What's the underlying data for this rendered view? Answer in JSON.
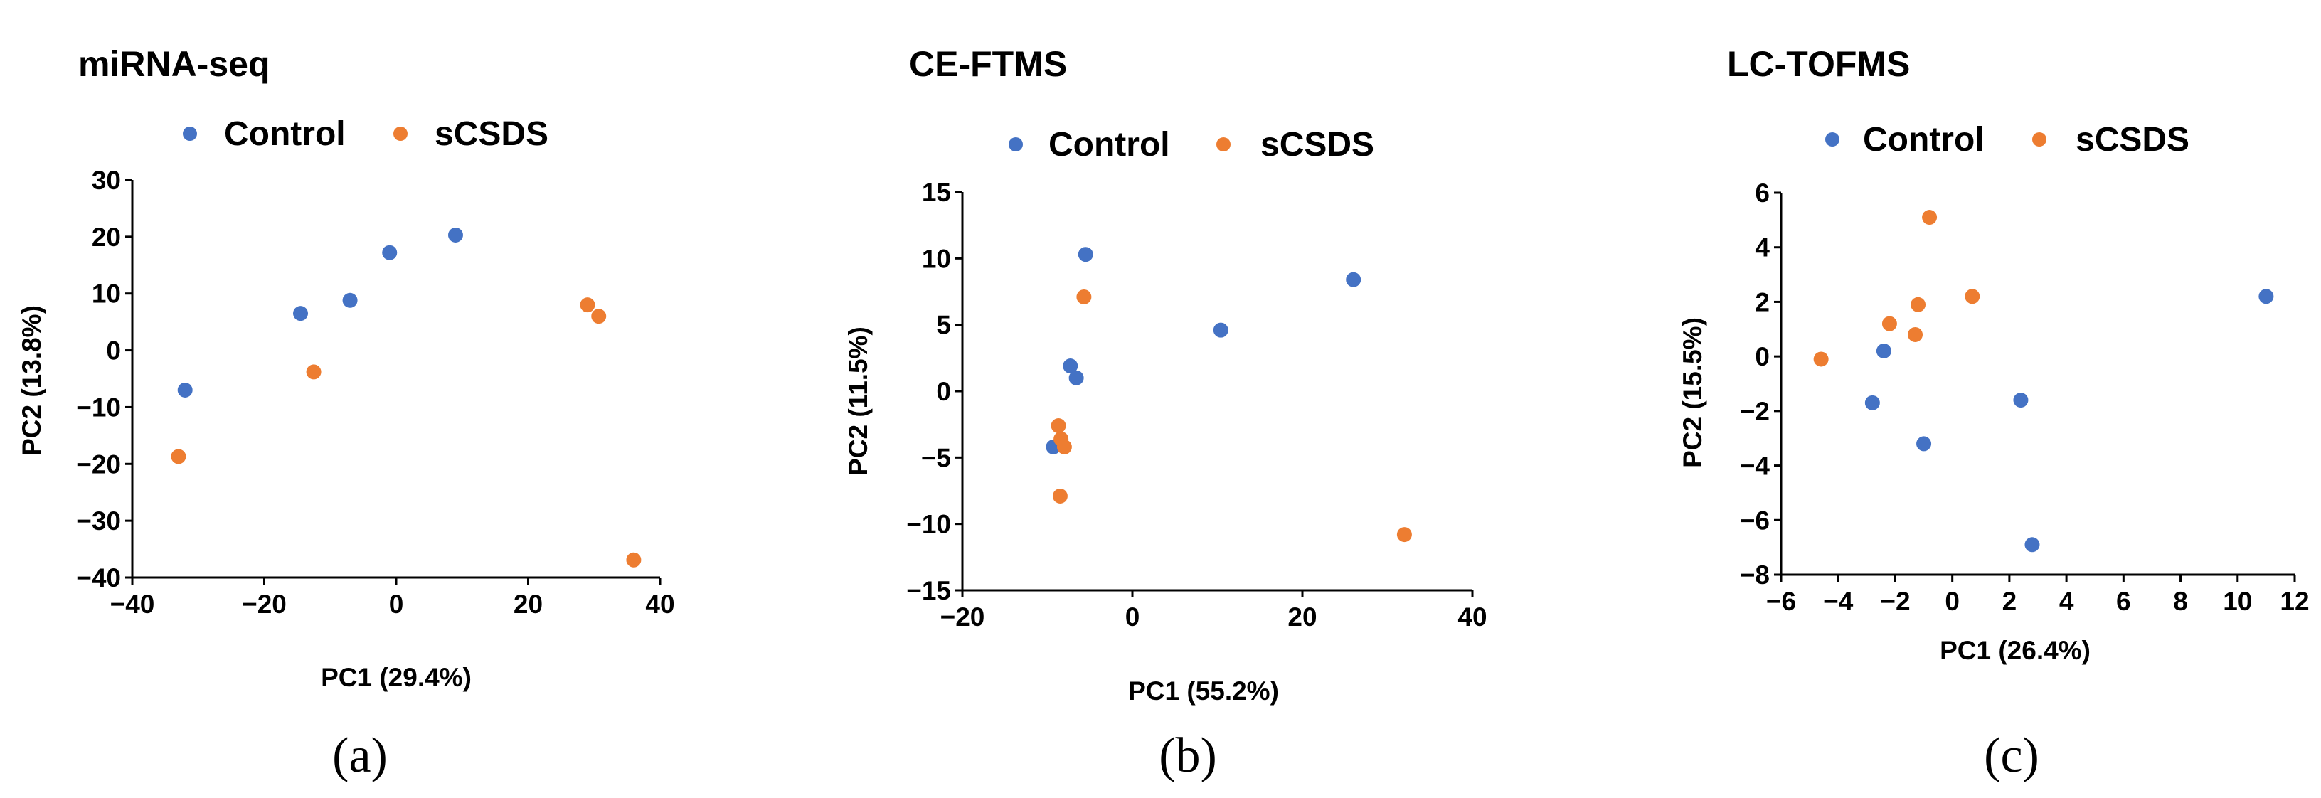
{
  "colors": {
    "control": "#4472C4",
    "scsds": "#ED7D31",
    "axis": "#000000"
  },
  "chart_data": [
    {
      "type": "scatter",
      "panel": "(a)",
      "title": "miRNA-seq",
      "xlabel": "PC1 (29.4%)",
      "ylabel": "PC2 (13.8%)",
      "xlim": [
        -40,
        40
      ],
      "ylim": [
        -40,
        30
      ],
      "xticks": [
        -40,
        -20,
        0,
        20,
        40
      ],
      "yticks": [
        -40,
        -30,
        -20,
        -10,
        0,
        10,
        20,
        30
      ],
      "xtick_labels": [
        "−40",
        "−20",
        "0",
        "20",
        "40"
      ],
      "ytick_labels": [
        "−40",
        "−30",
        "−20",
        "−10",
        "0",
        "10",
        "20",
        "30"
      ],
      "legend": [
        "Control",
        "sCSDS"
      ],
      "series": [
        {
          "name": "Control",
          "points": [
            [
              -32,
              -7
            ],
            [
              -14.5,
              6.5
            ],
            [
              -7,
              8.8
            ],
            [
              -1,
              17.2
            ],
            [
              9,
              20.3
            ]
          ]
        },
        {
          "name": "sCSDS",
          "points": [
            [
              -33,
              -18.7
            ],
            [
              -12.5,
              -3.8
            ],
            [
              29,
              8
            ],
            [
              30.7,
              6
            ],
            [
              36,
              -36.9
            ]
          ]
        }
      ]
    },
    {
      "type": "scatter",
      "panel": "(b)",
      "title": "CE-FTMS",
      "xlabel": "PC1 (55.2%)",
      "ylabel": "PC2 (11.5%)",
      "xlim": [
        -20,
        40
      ],
      "ylim": [
        -15,
        15
      ],
      "xticks": [
        -20,
        0,
        20,
        40
      ],
      "yticks": [
        -15,
        -10,
        -5,
        0,
        5,
        10,
        15
      ],
      "xtick_labels": [
        "−20",
        "0",
        "20",
        "40"
      ],
      "ytick_labels": [
        "−15",
        "−10",
        "−5",
        "0",
        "5",
        "10",
        "15"
      ],
      "legend": [
        "Control",
        "sCSDS"
      ],
      "series": [
        {
          "name": "Control",
          "points": [
            [
              -5.5,
              10.3
            ],
            [
              -7.3,
              1.9
            ],
            [
              -6.6,
              1
            ],
            [
              -9.3,
              -4.2
            ],
            [
              10.4,
              4.6
            ],
            [
              26,
              8.4
            ]
          ]
        },
        {
          "name": "sCSDS",
          "points": [
            [
              -5.7,
              7.1
            ],
            [
              -8.7,
              -2.6
            ],
            [
              -8.4,
              -3.6
            ],
            [
              -8,
              -4.2
            ],
            [
              -8.5,
              -7.9
            ],
            [
              32,
              -10.8
            ]
          ]
        }
      ]
    },
    {
      "type": "scatter",
      "panel": "(c)",
      "title": "LC-TOFMS",
      "xlabel": "PC1 (26.4%)",
      "ylabel": "PC2 (15.5%)",
      "xlim": [
        -6,
        12
      ],
      "ylim": [
        -8,
        6
      ],
      "xticks": [
        -6,
        -4,
        -2,
        0,
        2,
        4,
        6,
        8,
        10,
        12
      ],
      "yticks": [
        -8,
        -6,
        -4,
        -2,
        0,
        2,
        4,
        6
      ],
      "xtick_labels": [
        "−6",
        "−4",
        "−2",
        "0",
        "2",
        "4",
        "6",
        "8",
        "10",
        "12"
      ],
      "ytick_labels": [
        "−8",
        "−6",
        "−4",
        "−2",
        "0",
        "2",
        "4",
        "6"
      ],
      "legend": [
        "Control",
        "sCSDS"
      ],
      "series": [
        {
          "name": "Control",
          "points": [
            [
              -2.4,
              0.2
            ],
            [
              -2.8,
              -1.7
            ],
            [
              -1,
              -3.2
            ],
            [
              2.4,
              -1.6
            ],
            [
              2.8,
              -6.9
            ],
            [
              11,
              2.2
            ]
          ]
        },
        {
          "name": "sCSDS",
          "points": [
            [
              -4.6,
              -0.1
            ],
            [
              -2.2,
              1.2
            ],
            [
              -1.3,
              0.8
            ],
            [
              -1.2,
              1.9
            ],
            [
              -0.8,
              5.1
            ],
            [
              0.7,
              2.2
            ]
          ]
        }
      ]
    }
  ]
}
